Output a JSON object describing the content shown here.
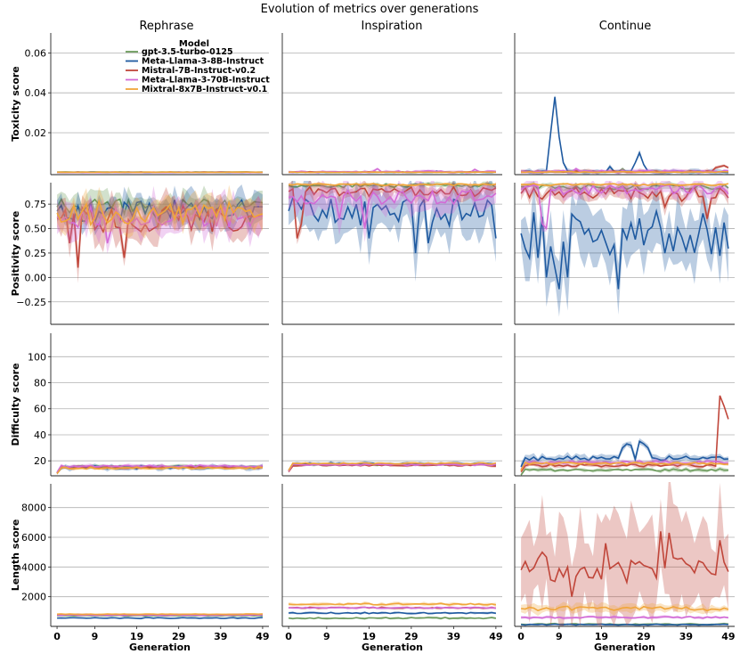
{
  "chart_data": {
    "type": "line",
    "title": "Evolution of metrics over generations",
    "columns": [
      "Rephrase",
      "Inspiration",
      "Continue"
    ],
    "xlabel": "Generation",
    "xticks": [
      0,
      9,
      19,
      29,
      39,
      49
    ],
    "xlim": [
      -1.5,
      50.5
    ],
    "legend": {
      "title": "Model",
      "placement": "top-left of first panel",
      "entries": [
        {
          "name": "gpt-3.5-turbo-0125",
          "color": "#6b9a5b"
        },
        {
          "name": "Meta-Llama-3-8B-Instruct",
          "color": "#1f5aa0"
        },
        {
          "name": "Mistral-7B-Instruct-v0.2",
          "color": "#c0463a"
        },
        {
          "name": "Meta-Llama-3-70B-Instruct",
          "color": "#d26ad6"
        },
        {
          "name": "Mixtral-8x7B-Instruct-v0.1",
          "color": "#f0a53a"
        }
      ]
    },
    "rows": [
      {
        "ylabel": "Toxicity score",
        "ylim": [
          -0.001,
          0.07
        ],
        "yticks": [
          0.02,
          0.04,
          0.06
        ],
        "ytick_labels": [
          "0.02",
          "0.04",
          "0.06"
        ],
        "series": {
          "Rephrase": [
            {
              "model": 0,
              "level": 0.0003,
              "noise": 0.0001,
              "band": 0.0001,
              "spikes": []
            },
            {
              "model": 1,
              "level": 0.0001,
              "noise": 0.0001,
              "band": 0.0001,
              "spikes": []
            },
            {
              "model": 2,
              "level": 0.0002,
              "noise": 0.0001,
              "band": 0.0001,
              "spikes": []
            },
            {
              "model": 3,
              "level": 0.0001,
              "noise": 0.0001,
              "band": 0.0001,
              "spikes": []
            },
            {
              "model": 4,
              "level": 0.0002,
              "noise": 0.0001,
              "band": 0.0001,
              "spikes": []
            }
          ],
          "Inspiration": [
            {
              "model": 0,
              "level": 0.0002,
              "noise": 0.0002,
              "band": 0.0002,
              "spikes": []
            },
            {
              "model": 1,
              "level": 0.0002,
              "noise": 0.0001,
              "band": 0.0002,
              "spikes": [
                [
                  35,
                  0.0008
                ]
              ]
            },
            {
              "model": 2,
              "level": 0.0003,
              "noise": 0.0002,
              "band": 0.0003,
              "spikes": []
            },
            {
              "model": 3,
              "level": 0.0004,
              "noise": 0.0004,
              "band": 0.0006,
              "spikes": [
                [
                  21,
                  0.002
                ],
                [
                  44,
                  0.0016
                ],
                [
                  33,
                  0.001
                ]
              ]
            },
            {
              "model": 4,
              "level": 0.0002,
              "noise": 0.0001,
              "band": 0.0002,
              "spikes": []
            }
          ],
          "Continue": [
            {
              "model": 0,
              "level": 0.0004,
              "noise": 0.0003,
              "band": 0.0004,
              "spikes": [
                [
                  24,
                  0.002
                ]
              ]
            },
            {
              "model": 1,
              "level": 0.0005,
              "noise": 0.0004,
              "band": 0.001,
              "spikes": [
                [
                  7,
                  0.02
                ],
                [
                  8,
                  0.038
                ],
                [
                  9,
                  0.018
                ],
                [
                  10,
                  0.005
                ],
                [
                  21,
                  0.003
                ],
                [
                  27,
                  0.005
                ],
                [
                  28,
                  0.01
                ],
                [
                  29,
                  0.004
                ]
              ]
            },
            {
              "model": 2,
              "level": 0.0005,
              "noise": 0.0004,
              "band": 0.0008,
              "spikes": [
                [
                  46,
                  0.0025
                ],
                [
                  47,
                  0.003
                ],
                [
                  48,
                  0.0035
                ],
                [
                  49,
                  0.0025
                ]
              ]
            },
            {
              "model": 3,
              "level": 0.0006,
              "noise": 0.0005,
              "band": 0.0008,
              "spikes": [
                [
                  13,
                  0.002
                ]
              ]
            },
            {
              "model": 4,
              "level": 0.0003,
              "noise": 0.0002,
              "band": 0.0003,
              "spikes": []
            }
          ]
        }
      },
      {
        "ylabel": "Positivity score",
        "ylim": [
          -0.48,
          0.97
        ],
        "yticks": [
          -0.25,
          0.0,
          0.25,
          0.5,
          0.75
        ],
        "ytick_labels": [
          "−0.25",
          "0.00",
          "0.25",
          "0.50",
          "0.75"
        ],
        "series": {
          "Rephrase": [
            {
              "model": 0,
              "level": 0.72,
              "noise": 0.09,
              "band": 0.1,
              "spikes": []
            },
            {
              "model": 1,
              "level": 0.68,
              "noise": 0.12,
              "band": 0.12,
              "spikes": []
            },
            {
              "model": 2,
              "level": 0.6,
              "noise": 0.14,
              "band": 0.15,
              "spikes": [
                [
                  5,
                  0.1
                ],
                [
                  16,
                  0.2
                ],
                [
                  3,
                  0.35
                ]
              ]
            },
            {
              "model": 3,
              "level": 0.62,
              "noise": 0.12,
              "band": 0.15,
              "spikes": [
                [
                  12,
                  0.35
                ]
              ]
            },
            {
              "model": 4,
              "level": 0.66,
              "noise": 0.12,
              "band": 0.12,
              "spikes": []
            }
          ],
          "Inspiration": [
            {
              "model": 0,
              "level": 0.94,
              "noise": 0.02,
              "band": 0.02,
              "spikes": []
            },
            {
              "model": 1,
              "level": 0.68,
              "noise": 0.15,
              "band": 0.2,
              "spikes": [
                [
                  19,
                  0.4
                ],
                [
                  30,
                  0.25
                ],
                [
                  33,
                  0.35
                ],
                [
                  49,
                  0.4
                ]
              ]
            },
            {
              "model": 2,
              "level": 0.88,
              "noise": 0.05,
              "band": 0.06,
              "spikes": [
                [
                  2,
                  0.4
                ],
                [
                  3,
                  0.55
                ]
              ]
            },
            {
              "model": 3,
              "level": 0.82,
              "noise": 0.07,
              "band": 0.12,
              "spikes": [
                [
                  18,
                  0.5
                ],
                [
                  12,
                  0.6
                ]
              ]
            },
            {
              "model": 4,
              "level": 0.95,
              "noise": 0.01,
              "band": 0.01,
              "spikes": []
            }
          ],
          "Continue": [
            {
              "model": 0,
              "level": 0.93,
              "noise": 0.03,
              "band": 0.03,
              "spikes": []
            },
            {
              "model": 1,
              "level": 0.45,
              "noise": 0.25,
              "band": 0.25,
              "spikes": [
                [
                  2,
                  0.2
                ],
                [
                  4,
                  0.2
                ],
                [
                  6,
                  0.0
                ],
                [
                  8,
                  0.1
                ],
                [
                  9,
                  -0.12
                ],
                [
                  11,
                  0.0
                ],
                [
                  23,
                  -0.12
                ]
              ]
            },
            {
              "model": 2,
              "level": 0.86,
              "noise": 0.06,
              "band": 0.06,
              "spikes": [
                [
                  34,
                  0.72
                ],
                [
                  38,
                  0.78
                ],
                [
                  44,
                  0.6
                ]
              ]
            },
            {
              "model": 3,
              "level": 0.9,
              "noise": 0.05,
              "band": 0.06,
              "spikes": [
                [
                  5,
                  0.55
                ],
                [
                  6,
                  0.5
                ]
              ]
            },
            {
              "model": 4,
              "level": 0.95,
              "noise": 0.01,
              "band": 0.01,
              "spikes": []
            }
          ]
        }
      },
      {
        "ylabel": "Difficulty score",
        "ylim": [
          8.5,
          118
        ],
        "yticks": [
          20,
          40,
          60,
          80,
          100
        ],
        "ytick_labels": [
          "20",
          "40",
          "60",
          "80",
          "100"
        ],
        "series": {
          "Rephrase": [
            {
              "model": 0,
              "level": 15.5,
              "noise": 0.8,
              "band": 1.2,
              "spikes": []
            },
            {
              "model": 1,
              "level": 15.0,
              "noise": 1.2,
              "band": 1.5,
              "spikes": []
            },
            {
              "model": 2,
              "level": 15.0,
              "noise": 0.8,
              "band": 1.0,
              "spikes": []
            },
            {
              "model": 3,
              "level": 16.0,
              "noise": 0.8,
              "band": 1.2,
              "spikes": []
            },
            {
              "model": 4,
              "level": 14.5,
              "noise": 0.8,
              "band": 1.0,
              "spikes": []
            }
          ],
          "Inspiration": [
            {
              "model": 0,
              "level": 17.0,
              "noise": 0.6,
              "band": 0.8,
              "spikes": []
            },
            {
              "model": 1,
              "level": 18.0,
              "noise": 0.6,
              "band": 1.0,
              "spikes": []
            },
            {
              "model": 2,
              "level": 16.5,
              "noise": 0.6,
              "band": 0.8,
              "spikes": []
            },
            {
              "model": 3,
              "level": 17.0,
              "noise": 0.6,
              "band": 0.8,
              "spikes": []
            },
            {
              "model": 4,
              "level": 18.0,
              "noise": 0.5,
              "band": 0.6,
              "spikes": []
            }
          ],
          "Continue": [
            {
              "model": 0,
              "level": 13.0,
              "noise": 1.0,
              "band": 1.2,
              "spikes": []
            },
            {
              "model": 1,
              "level": 22.0,
              "noise": 1.8,
              "band": 2.5,
              "spikes": [
                [
                  24,
                  30
                ],
                [
                  25,
                  33
                ],
                [
                  26,
                  32
                ],
                [
                  28,
                  35
                ],
                [
                  29,
                  33
                ],
                [
                  30,
                  30
                ]
              ]
            },
            {
              "model": 2,
              "level": 16.5,
              "noise": 1.0,
              "band": 1.5,
              "spikes": [
                [
                  47,
                  70
                ],
                [
                  48,
                  62
                ],
                [
                  49,
                  52
                ]
              ]
            },
            {
              "model": 3,
              "level": 19.0,
              "noise": 1.0,
              "band": 1.5,
              "spikes": []
            },
            {
              "model": 4,
              "level": 18.0,
              "noise": 0.8,
              "band": 1.0,
              "spikes": []
            }
          ]
        }
      },
      {
        "ylabel": "Length score",
        "ylim": [
          0,
          9600
        ],
        "yticks": [
          2000,
          4000,
          6000,
          8000
        ],
        "ytick_labels": [
          "2000",
          "4000",
          "6000",
          "8000"
        ],
        "series": {
          "Rephrase": [
            {
              "model": 0,
              "level": 720,
              "noise": 20,
              "band": 40,
              "spikes": []
            },
            {
              "model": 1,
              "level": 560,
              "noise": 30,
              "band": 50,
              "spikes": []
            },
            {
              "model": 2,
              "level": 800,
              "noise": 20,
              "band": 40,
              "spikes": []
            },
            {
              "model": 3,
              "level": 760,
              "noise": 20,
              "band": 40,
              "spikes": []
            },
            {
              "model": 4,
              "level": 820,
              "noise": 20,
              "band": 40,
              "spikes": []
            }
          ],
          "Inspiration": [
            {
              "model": 0,
              "level": 560,
              "noise": 40,
              "band": 60,
              "spikes": []
            },
            {
              "model": 1,
              "level": 900,
              "noise": 40,
              "band": 60,
              "spikes": []
            },
            {
              "model": 2,
              "level": 1250,
              "noise": 40,
              "band": 60,
              "spikes": []
            },
            {
              "model": 3,
              "level": 1250,
              "noise": 40,
              "band": 60,
              "spikes": []
            },
            {
              "model": 4,
              "level": 1500,
              "noise": 50,
              "band": 100,
              "spikes": []
            }
          ],
          "Continue": [
            {
              "model": 0,
              "level": 150,
              "noise": 40,
              "band": 50,
              "spikes": []
            },
            {
              "model": 1,
              "level": 120,
              "noise": 30,
              "band": 40,
              "spikes": []
            },
            {
              "model": 2,
              "level": 3800,
              "noise": 900,
              "band": 2800,
              "spikes": [
                [
                  5,
                  5000
                ],
                [
                  20,
                  5600
                ],
                [
                  33,
                  6400
                ],
                [
                  35,
                  6300
                ],
                [
                  47,
                  5800
                ],
                [
                  12,
                  2000
                ]
              ]
            },
            {
              "model": 3,
              "level": 600,
              "noise": 60,
              "band": 80,
              "spikes": []
            },
            {
              "model": 4,
              "level": 1200,
              "noise": 150,
              "band": 250,
              "spikes": []
            }
          ]
        }
      }
    ]
  }
}
